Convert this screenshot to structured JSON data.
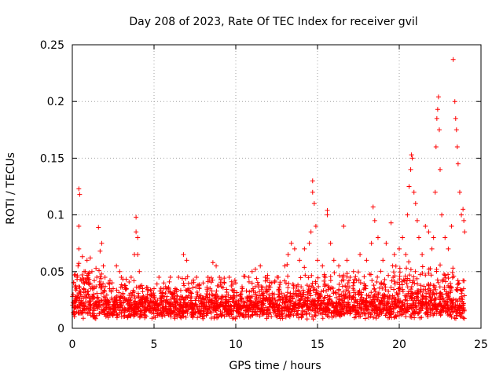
{
  "chart_data": {
    "type": "scatter",
    "title": "Day 208 of 2023, Rate Of TEC Index for receiver gvil",
    "xlabel": "GPS time / hours",
    "ylabel": "ROTI / TECUs",
    "xlim": [
      0,
      25
    ],
    "ylim": [
      0,
      0.25
    ],
    "x_ticks": [
      "0",
      "5",
      "10",
      "15",
      "20",
      "25"
    ],
    "y_ticks": [
      "0",
      "0.05",
      "0.1",
      "0.15",
      "0.2",
      "0.25"
    ],
    "grid": true,
    "marker": "plus",
    "color": "#ff0000",
    "points": [
      [
        0.1,
        0.012
      ],
      [
        0.2,
        0.025
      ],
      [
        0.3,
        0.045
      ],
      [
        0.35,
        0.055
      ],
      [
        0.4,
        0.123
      ],
      [
        0.45,
        0.118
      ],
      [
        0.4,
        0.09
      ],
      [
        0.4,
        0.07
      ],
      [
        0.5,
        0.03
      ],
      [
        0.6,
        0.02
      ],
      [
        0.7,
        0.035
      ],
      [
        0.8,
        0.05
      ],
      [
        0.9,
        0.06
      ],
      [
        1.0,
        0.04
      ],
      [
        1.1,
        0.062
      ],
      [
        1.2,
        0.05
      ],
      [
        1.3,
        0.03
      ],
      [
        1.5,
        0.045
      ],
      [
        1.6,
        0.089
      ],
      [
        1.7,
        0.068
      ],
      [
        1.8,
        0.075
      ],
      [
        1.9,
        0.055
      ],
      [
        2.0,
        0.045
      ],
      [
        2.2,
        0.04
      ],
      [
        2.5,
        0.035
      ],
      [
        2.7,
        0.055
      ],
      [
        2.9,
        0.05
      ],
      [
        3.0,
        0.045
      ],
      [
        3.3,
        0.035
      ],
      [
        3.6,
        0.045
      ],
      [
        3.8,
        0.065
      ],
      [
        3.9,
        0.098
      ],
      [
        3.9,
        0.085
      ],
      [
        4.0,
        0.08
      ],
      [
        4.0,
        0.065
      ],
      [
        4.1,
        0.05
      ],
      [
        4.3,
        0.035
      ],
      [
        4.6,
        0.03
      ],
      [
        5.0,
        0.035
      ],
      [
        5.3,
        0.045
      ],
      [
        5.6,
        0.04
      ],
      [
        6.0,
        0.045
      ],
      [
        6.3,
        0.035
      ],
      [
        6.5,
        0.045
      ],
      [
        6.8,
        0.065
      ],
      [
        7.0,
        0.06
      ],
      [
        7.3,
        0.04
      ],
      [
        7.6,
        0.045
      ],
      [
        8.0,
        0.04
      ],
      [
        8.3,
        0.045
      ],
      [
        8.6,
        0.058
      ],
      [
        8.8,
        0.055
      ],
      [
        9.0,
        0.045
      ],
      [
        9.3,
        0.04
      ],
      [
        9.6,
        0.045
      ],
      [
        10.0,
        0.04
      ],
      [
        10.4,
        0.035
      ],
      [
        10.8,
        0.045
      ],
      [
        11.0,
        0.05
      ],
      [
        11.2,
        0.052
      ],
      [
        11.5,
        0.055
      ],
      [
        11.8,
        0.045
      ],
      [
        12.2,
        0.04
      ],
      [
        12.6,
        0.045
      ],
      [
        13.0,
        0.055
      ],
      [
        13.2,
        0.065
      ],
      [
        13.4,
        0.075
      ],
      [
        13.6,
        0.07
      ],
      [
        13.9,
        0.06
      ],
      [
        14.2,
        0.07
      ],
      [
        14.5,
        0.075
      ],
      [
        14.6,
        0.085
      ],
      [
        14.7,
        0.13
      ],
      [
        14.7,
        0.12
      ],
      [
        14.8,
        0.11
      ],
      [
        14.9,
        0.09
      ],
      [
        15.0,
        0.06
      ],
      [
        15.3,
        0.055
      ],
      [
        15.6,
        0.104
      ],
      [
        15.6,
        0.1
      ],
      [
        15.8,
        0.075
      ],
      [
        16.0,
        0.06
      ],
      [
        16.3,
        0.055
      ],
      [
        16.6,
        0.09
      ],
      [
        16.8,
        0.06
      ],
      [
        17.2,
        0.05
      ],
      [
        17.6,
        0.065
      ],
      [
        18.0,
        0.06
      ],
      [
        18.3,
        0.075
      ],
      [
        18.4,
        0.107
      ],
      [
        18.5,
        0.095
      ],
      [
        18.7,
        0.08
      ],
      [
        19.0,
        0.06
      ],
      [
        19.2,
        0.075
      ],
      [
        19.5,
        0.093
      ],
      [
        19.7,
        0.065
      ],
      [
        20.0,
        0.07
      ],
      [
        20.2,
        0.08
      ],
      [
        20.4,
        0.065
      ],
      [
        20.5,
        0.1
      ],
      [
        20.6,
        0.125
      ],
      [
        20.7,
        0.14
      ],
      [
        20.75,
        0.153
      ],
      [
        20.8,
        0.15
      ],
      [
        20.9,
        0.12
      ],
      [
        21.0,
        0.11
      ],
      [
        21.1,
        0.095
      ],
      [
        21.2,
        0.08
      ],
      [
        21.4,
        0.065
      ],
      [
        21.6,
        0.09
      ],
      [
        21.8,
        0.085
      ],
      [
        22.0,
        0.07
      ],
      [
        22.1,
        0.08
      ],
      [
        22.2,
        0.12
      ],
      [
        22.25,
        0.16
      ],
      [
        22.3,
        0.185
      ],
      [
        22.35,
        0.193
      ],
      [
        22.4,
        0.204
      ],
      [
        22.45,
        0.175
      ],
      [
        22.5,
        0.14
      ],
      [
        22.6,
        0.1
      ],
      [
        22.8,
        0.08
      ],
      [
        23.0,
        0.07
      ],
      [
        23.2,
        0.09
      ],
      [
        23.3,
        0.237
      ],
      [
        23.4,
        0.2
      ],
      [
        23.45,
        0.185
      ],
      [
        23.5,
        0.175
      ],
      [
        23.55,
        0.16
      ],
      [
        23.6,
        0.145
      ],
      [
        23.7,
        0.12
      ],
      [
        23.8,
        0.1
      ],
      [
        23.9,
        0.105
      ],
      [
        23.95,
        0.095
      ],
      [
        24.0,
        0.085
      ]
    ]
  }
}
